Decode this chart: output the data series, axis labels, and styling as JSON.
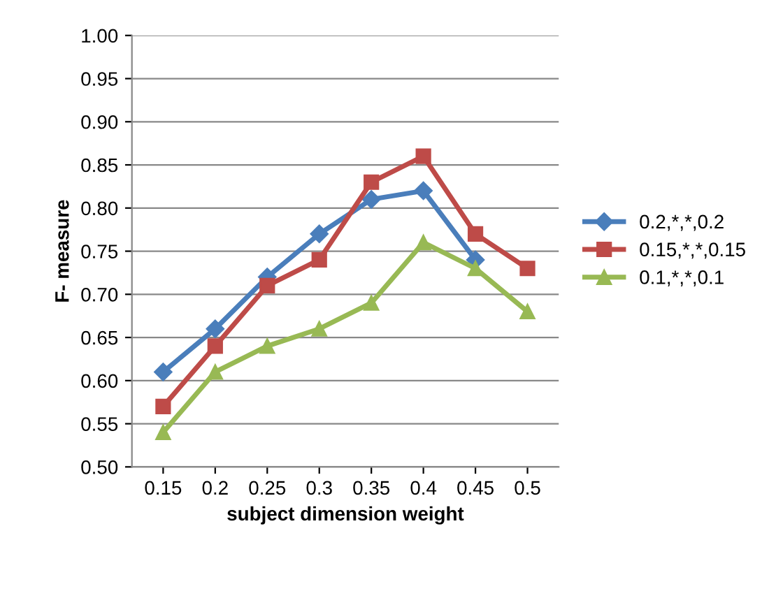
{
  "chart_data": {
    "type": "line",
    "xlabel": "subject dimension weight",
    "ylabel": "F- measure",
    "categories": [
      "0.15",
      "0.2",
      "0.25",
      "0.3",
      "0.35",
      "0.4",
      "0.45",
      "0.5"
    ],
    "series": [
      {
        "name": "0.2,*,*,0.2",
        "color": "#4a7ebb",
        "marker": "diamond",
        "values": [
          0.61,
          0.66,
          0.72,
          0.77,
          0.81,
          0.82,
          0.74,
          null
        ]
      },
      {
        "name": "0.15,*,*,0.15",
        "color": "#be4b48",
        "marker": "square",
        "values": [
          0.57,
          0.64,
          0.71,
          0.74,
          0.83,
          0.86,
          0.77,
          0.73
        ]
      },
      {
        "name": "0.1,*,*,0.1",
        "color": "#98b954",
        "marker": "triangle",
        "values": [
          0.54,
          0.61,
          0.64,
          0.66,
          0.69,
          0.76,
          0.73,
          0.68
        ]
      }
    ],
    "ylim": [
      0.5,
      1.0
    ],
    "yticks": [
      {
        "value": 0.5,
        "label": "0.50"
      },
      {
        "value": 0.55,
        "label": "0.55"
      },
      {
        "value": 0.6,
        "label": "0.60"
      },
      {
        "value": 0.65,
        "label": "0.65"
      },
      {
        "value": 0.7,
        "label": "0.70"
      },
      {
        "value": 0.75,
        "label": "0.75"
      },
      {
        "value": 0.8,
        "label": "0.80"
      },
      {
        "value": 0.85,
        "label": "0.85"
      },
      {
        "value": 0.9,
        "label": "0.90"
      },
      {
        "value": 0.95,
        "label": "0.95"
      },
      {
        "value": 1.0,
        "label": "1.00"
      }
    ],
    "grid": "y",
    "legend": "right",
    "line_style": "solid"
  }
}
